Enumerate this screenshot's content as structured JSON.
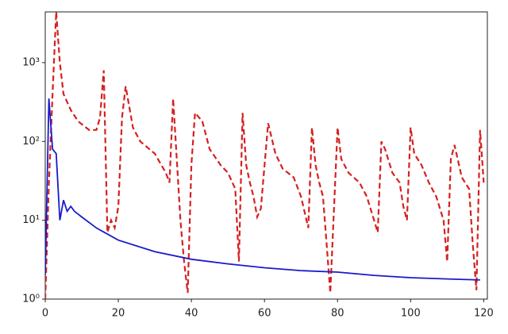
{
  "chart_data": {
    "type": "line",
    "xlim": [
      0,
      121
    ],
    "xticks": [
      0,
      20,
      40,
      60,
      80,
      100,
      120
    ],
    "ylim": [
      1,
      4400
    ],
    "log_y": true,
    "yticks": [
      {
        "value": 1,
        "label": "10⁰"
      },
      {
        "value": 10,
        "label": "10¹"
      },
      {
        "value": 100,
        "label": "10²"
      },
      {
        "value": 1000,
        "label": "10³"
      }
    ],
    "series": [
      {
        "color": "#d62020",
        "dashed": true,
        "x": [
          0,
          1,
          2,
          3,
          4,
          5,
          7,
          9,
          12,
          14,
          15,
          16,
          17,
          18,
          19,
          20,
          21,
          22,
          24,
          26,
          30,
          33,
          34,
          35,
          36,
          37,
          38,
          39,
          40,
          41,
          43,
          45,
          48,
          50,
          52,
          53,
          54,
          55,
          56,
          57,
          58,
          59,
          61,
          63,
          65,
          68,
          70,
          72,
          73,
          74,
          75,
          76,
          77,
          78,
          80,
          81,
          83,
          86,
          88,
          90,
          91,
          92,
          93,
          95,
          97,
          98,
          99,
          100,
          101,
          103,
          105,
          107,
          109,
          110,
          111,
          112,
          114,
          116,
          117,
          118,
          119,
          120
        ],
        "values": [
          1,
          30,
          400,
          4400,
          1000,
          400,
          250,
          180,
          140,
          140,
          200,
          800,
          7,
          10,
          8,
          15,
          200,
          500,
          150,
          100,
          70,
          40,
          30,
          350,
          60,
          10,
          3,
          1.2,
          50,
          230,
          180,
          80,
          50,
          40,
          25,
          3,
          230,
          50,
          30,
          20,
          11,
          14,
          170,
          70,
          45,
          35,
          20,
          8,
          150,
          50,
          30,
          20,
          5,
          1.2,
          150,
          60,
          40,
          30,
          20,
          10,
          7,
          100,
          80,
          40,
          30,
          15,
          10,
          150,
          70,
          50,
          30,
          20,
          10,
          3,
          60,
          90,
          35,
          25,
          5,
          1.3,
          140,
          30
        ]
      },
      {
        "color": "#1a1acc",
        "dashed": false,
        "x": [
          0,
          1,
          2,
          3,
          4,
          5,
          6,
          7,
          8,
          10,
          14,
          20,
          30,
          40,
          50,
          60,
          70,
          80,
          90,
          100,
          110,
          119
        ],
        "values": [
          2,
          350,
          80,
          70,
          10,
          18,
          13,
          15,
          13,
          11,
          8,
          5.6,
          4,
          3.2,
          2.8,
          2.5,
          2.3,
          2.2,
          2,
          1.87,
          1.8,
          1.75
        ]
      }
    ]
  }
}
